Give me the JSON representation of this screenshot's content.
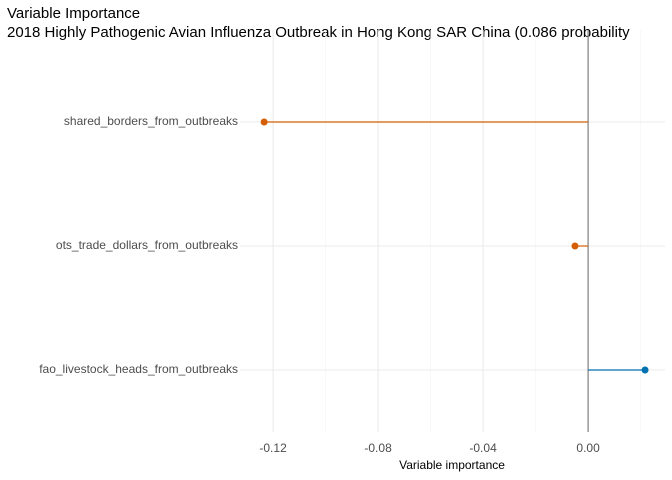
{
  "chart_data": {
    "type": "lollipop",
    "title": "Variable Importance",
    "subtitle": "2018 Highly Pathogenic Avian Influenza Outbreak in Hong Kong SAR China (0.086 probability",
    "x_label": "Variable importance",
    "categories": [
      "shared_borders_from_outbreaks",
      "ots_trade_dollars_from_outbreaks",
      "fao_livestock_heads_from_outbreaks"
    ],
    "values": [
      -0.1234,
      -0.005,
      0.0217
    ],
    "colors": [
      "#d55e00",
      "#d55e00",
      "#0072b2"
    ],
    "xlim": [
      -0.1326,
      0.0293
    ],
    "xticks": [
      -0.12,
      -0.08,
      -0.04,
      {
        "value": 0,
        "label": "0.00"
      }
    ],
    "xminor_ticks": [
      -0.1,
      -0.06,
      -0.02,
      0.02
    ],
    "zero_line_color": "#808080",
    "grid": true
  }
}
